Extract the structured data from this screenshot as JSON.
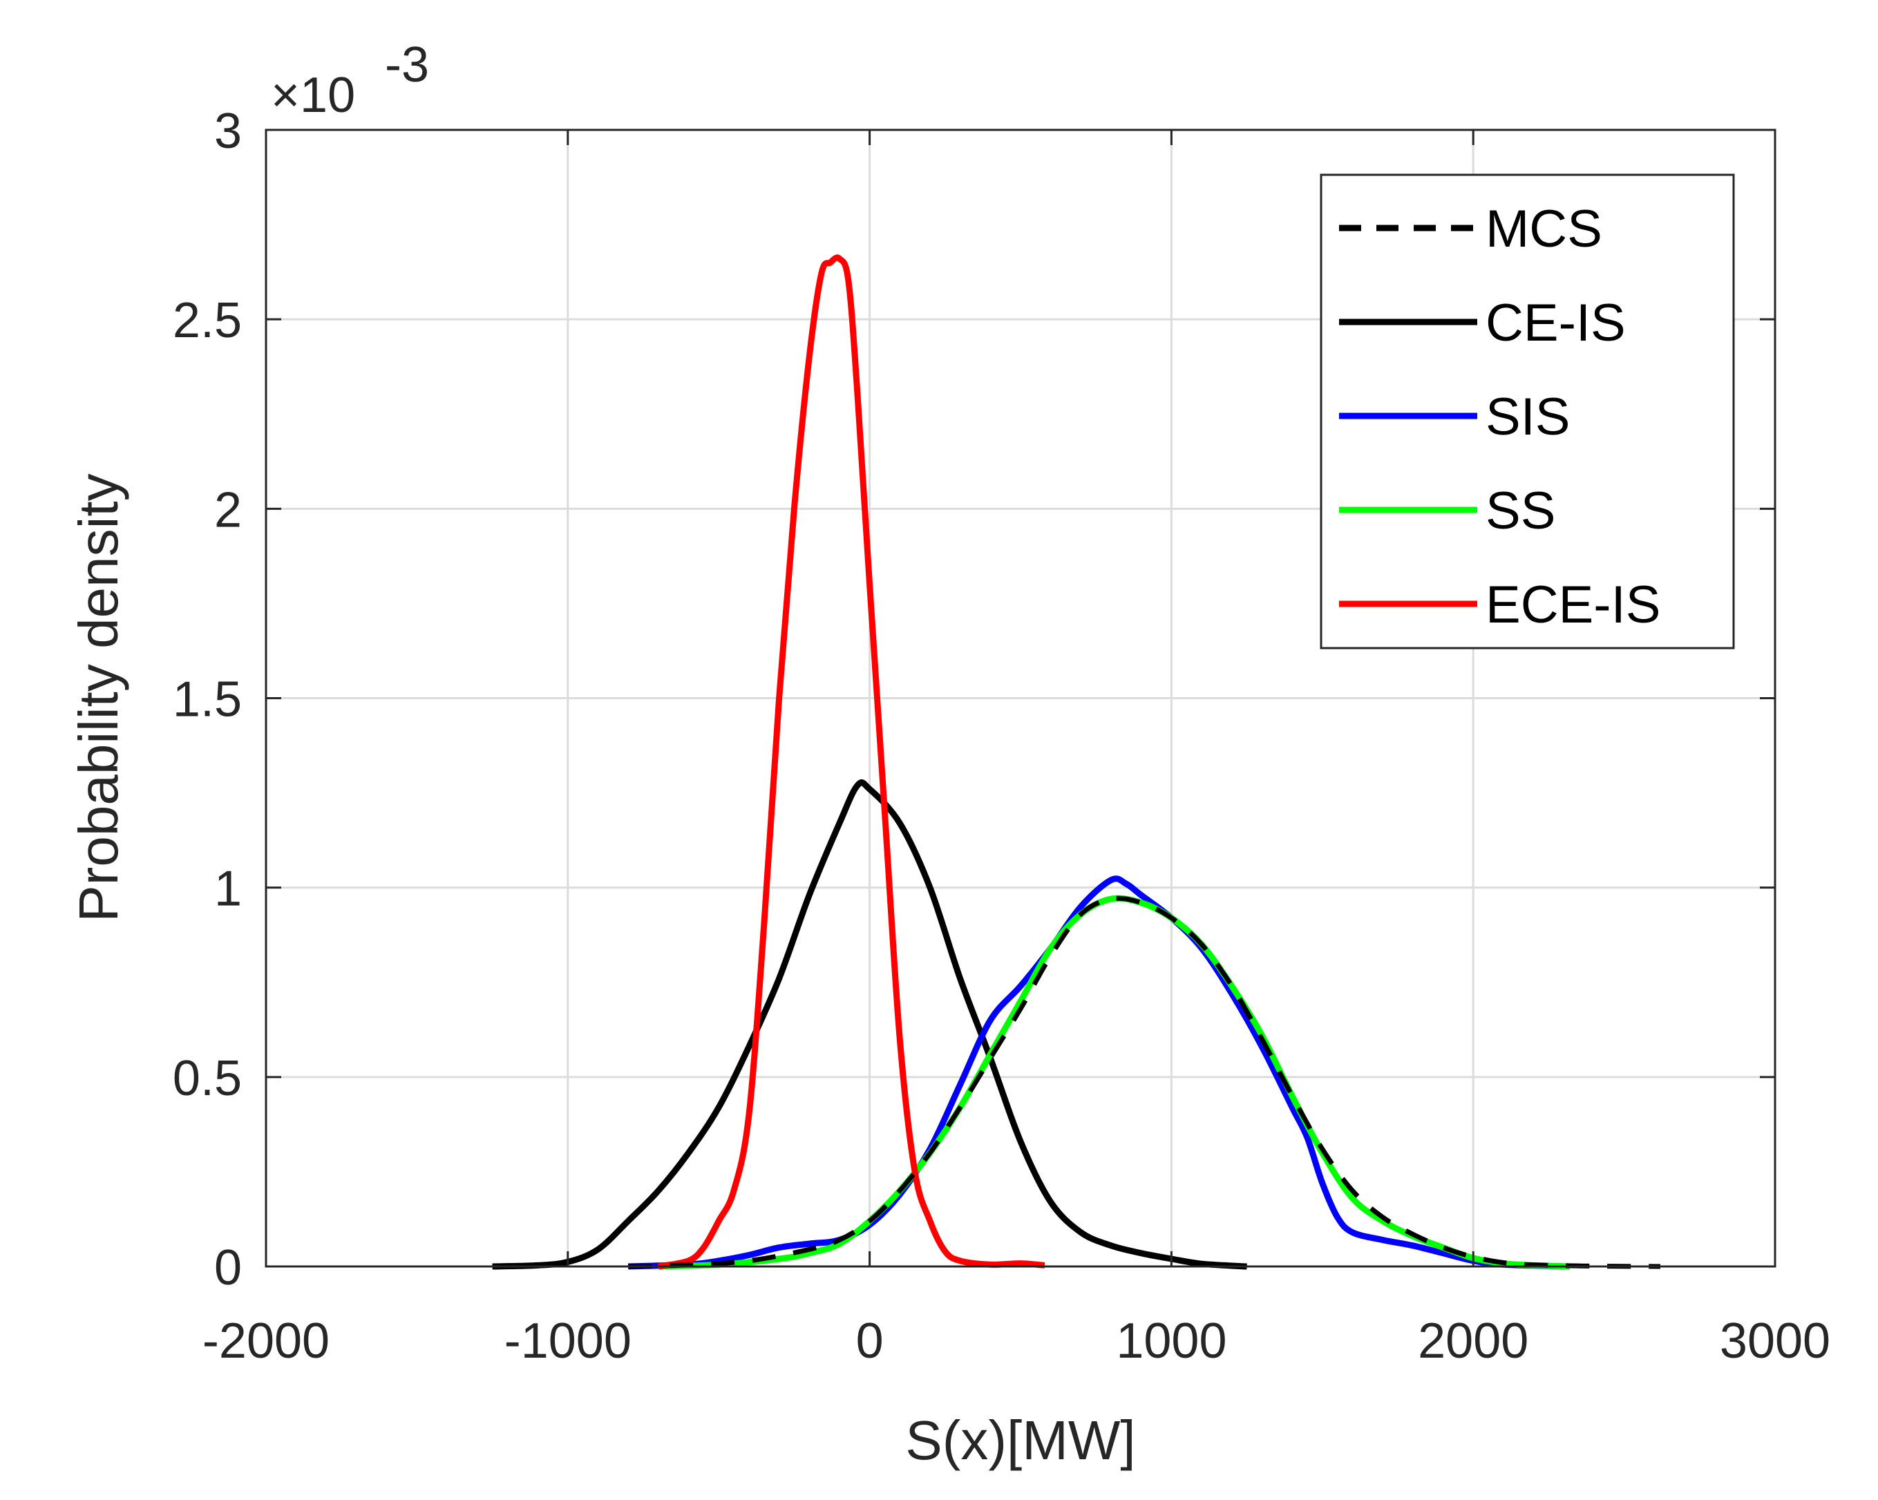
{
  "chart_data": {
    "type": "line",
    "xlabel": "S(x)[MW]",
    "ylabel": "Probability density",
    "xlim": [
      -2000,
      3000
    ],
    "ylim": [
      0,
      3
    ],
    "y_exponent_prefix": "×10",
    "y_exponent": "-3",
    "x_ticks": [
      -2000,
      -1000,
      0,
      1000,
      2000,
      3000
    ],
    "x_tick_labels": [
      "-2000",
      "-1000",
      "0",
      "1000",
      "2000",
      "3000"
    ],
    "y_ticks": [
      0,
      0.5,
      1,
      1.5,
      2,
      2.5,
      3
    ],
    "y_tick_labels": [
      "0",
      "0.5",
      "1",
      "1.5",
      "2",
      "2.5",
      "3"
    ],
    "grid": true,
    "legend_position": "top-right",
    "series": [
      {
        "name": "MCS",
        "color": "#000000",
        "dashed": true,
        "points": [
          [
            -800,
            0
          ],
          [
            -600,
            0.004
          ],
          [
            -400,
            0.015
          ],
          [
            -200,
            0.045
          ],
          [
            -100,
            0.07
          ],
          [
            0,
            0.12
          ],
          [
            100,
            0.2
          ],
          [
            200,
            0.3
          ],
          [
            300,
            0.42
          ],
          [
            400,
            0.55
          ],
          [
            500,
            0.68
          ],
          [
            600,
            0.82
          ],
          [
            700,
            0.93
          ],
          [
            800,
            0.97
          ],
          [
            900,
            0.96
          ],
          [
            1000,
            0.92
          ],
          [
            1100,
            0.85
          ],
          [
            1200,
            0.74
          ],
          [
            1300,
            0.6
          ],
          [
            1400,
            0.45
          ],
          [
            1500,
            0.31
          ],
          [
            1600,
            0.2
          ],
          [
            1700,
            0.13
          ],
          [
            1800,
            0.085
          ],
          [
            1900,
            0.05
          ],
          [
            2000,
            0.025
          ],
          [
            2100,
            0.01
          ],
          [
            2200,
            0.004
          ],
          [
            2400,
            0.001
          ],
          [
            2620,
            0
          ]
        ]
      },
      {
        "name": "CE-IS",
        "color": "#000000",
        "dashed": false,
        "points": [
          [
            -1250,
            0
          ],
          [
            -1100,
            0.003
          ],
          [
            -1000,
            0.012
          ],
          [
            -900,
            0.045
          ],
          [
            -800,
            0.12
          ],
          [
            -700,
            0.2
          ],
          [
            -600,
            0.3
          ],
          [
            -500,
            0.42
          ],
          [
            -400,
            0.58
          ],
          [
            -300,
            0.76
          ],
          [
            -200,
            0.98
          ],
          [
            -100,
            1.17
          ],
          [
            -40,
            1.27
          ],
          [
            0,
            1.26
          ],
          [
            100,
            1.17
          ],
          [
            200,
            1.0
          ],
          [
            300,
            0.76
          ],
          [
            400,
            0.55
          ],
          [
            500,
            0.33
          ],
          [
            600,
            0.17
          ],
          [
            700,
            0.09
          ],
          [
            800,
            0.055
          ],
          [
            900,
            0.035
          ],
          [
            1000,
            0.02
          ],
          [
            1100,
            0.007
          ],
          [
            1250,
            0
          ]
        ]
      },
      {
        "name": "SIS",
        "color": "#0000ff",
        "dashed": false,
        "points": [
          [
            -800,
            0
          ],
          [
            -600,
            0.005
          ],
          [
            -500,
            0.015
          ],
          [
            -400,
            0.03
          ],
          [
            -300,
            0.05
          ],
          [
            -200,
            0.06
          ],
          [
            -100,
            0.07
          ],
          [
            0,
            0.11
          ],
          [
            100,
            0.19
          ],
          [
            200,
            0.31
          ],
          [
            300,
            0.48
          ],
          [
            400,
            0.65
          ],
          [
            500,
            0.74
          ],
          [
            600,
            0.84
          ],
          [
            700,
            0.95
          ],
          [
            800,
            1.02
          ],
          [
            850,
            1.01
          ],
          [
            900,
            0.98
          ],
          [
            1000,
            0.92
          ],
          [
            1100,
            0.84
          ],
          [
            1200,
            0.72
          ],
          [
            1300,
            0.58
          ],
          [
            1400,
            0.42
          ],
          [
            1450,
            0.34
          ],
          [
            1500,
            0.22
          ],
          [
            1550,
            0.13
          ],
          [
            1600,
            0.09
          ],
          [
            1700,
            0.07
          ],
          [
            1800,
            0.055
          ],
          [
            1900,
            0.035
          ],
          [
            2000,
            0.015
          ],
          [
            2100,
            0.005
          ],
          [
            2300,
            0
          ]
        ]
      },
      {
        "name": "SS",
        "color": "#00ff00",
        "dashed": false,
        "points": [
          [
            -700,
            0
          ],
          [
            -500,
            0.005
          ],
          [
            -300,
            0.02
          ],
          [
            -200,
            0.035
          ],
          [
            -100,
            0.06
          ],
          [
            0,
            0.12
          ],
          [
            100,
            0.2
          ],
          [
            200,
            0.3
          ],
          [
            300,
            0.42
          ],
          [
            400,
            0.56
          ],
          [
            500,
            0.7
          ],
          [
            600,
            0.84
          ],
          [
            700,
            0.93
          ],
          [
            800,
            0.97
          ],
          [
            900,
            0.96
          ],
          [
            1000,
            0.92
          ],
          [
            1100,
            0.85
          ],
          [
            1200,
            0.74
          ],
          [
            1300,
            0.61
          ],
          [
            1400,
            0.45
          ],
          [
            1500,
            0.3
          ],
          [
            1600,
            0.18
          ],
          [
            1700,
            0.12
          ],
          [
            1800,
            0.08
          ],
          [
            1900,
            0.05
          ],
          [
            2000,
            0.022
          ],
          [
            2100,
            0.008
          ],
          [
            2200,
            0.003
          ],
          [
            2320,
            0
          ]
        ]
      },
      {
        "name": "ECE-IS",
        "color": "#ff0000",
        "dashed": false,
        "points": [
          [
            -700,
            0
          ],
          [
            -600,
            0.015
          ],
          [
            -550,
            0.05
          ],
          [
            -500,
            0.12
          ],
          [
            -450,
            0.2
          ],
          [
            -400,
            0.4
          ],
          [
            -350,
            0.9
          ],
          [
            -300,
            1.5
          ],
          [
            -250,
            2.0
          ],
          [
            -200,
            2.4
          ],
          [
            -160,
            2.62
          ],
          [
            -130,
            2.65
          ],
          [
            -100,
            2.66
          ],
          [
            -70,
            2.6
          ],
          [
            -40,
            2.3
          ],
          [
            0,
            1.8
          ],
          [
            50,
            1.2
          ],
          [
            100,
            0.6
          ],
          [
            150,
            0.25
          ],
          [
            200,
            0.12
          ],
          [
            250,
            0.04
          ],
          [
            300,
            0.015
          ],
          [
            400,
            0.005
          ],
          [
            500,
            0.008
          ],
          [
            580,
            0.003
          ]
        ]
      }
    ]
  }
}
